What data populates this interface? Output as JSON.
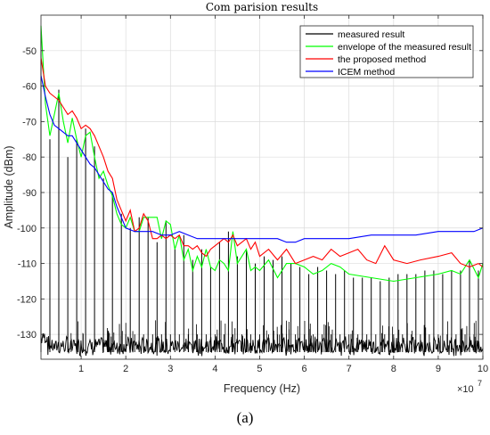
{
  "chart_data": {
    "type": "line",
    "title": "Com parision results",
    "xlabel": "Frequency  (Hz)",
    "ylabel": "Amplitude  (dBm)",
    "x_exponent_label": "×10",
    "x_exponent_power": "7",
    "xlim": [
      0.1,
      10
    ],
    "ylim": [
      -137,
      -40
    ],
    "x_ticks": [
      1,
      2,
      3,
      4,
      5,
      6,
      7,
      8,
      9,
      10
    ],
    "y_ticks": [
      -50,
      -60,
      -70,
      -80,
      -90,
      -100,
      -110,
      -120,
      -130
    ],
    "grid": true,
    "legend_placement": "top-right",
    "series": [
      {
        "name": "measured result",
        "color": "#000000",
        "style": "spikes",
        "noise_floor": [
          -134,
          -132.5
        ],
        "spike_spacing": 0.2,
        "x": [
          0.1,
          0.3,
          0.5,
          0.7,
          0.9,
          1.1,
          1.3,
          1.5,
          1.7,
          1.9,
          2.1,
          2.3,
          2.5,
          2.7,
          2.9,
          3.1,
          3.3,
          3.5,
          3.7,
          3.9,
          4.1,
          4.3,
          4.5,
          4.7,
          4.9,
          5.1,
          5.3,
          5.5,
          5.7,
          5.9,
          6.1,
          6.3,
          6.5,
          6.7,
          6.9,
          7.1,
          7.3,
          7.5,
          7.7,
          7.9,
          8.1,
          8.3,
          8.5,
          8.7,
          8.9,
          9.1,
          9.3,
          9.5,
          9.7,
          9.9
        ],
        "peaks": [
          -43,
          -75,
          -61,
          -80,
          -75,
          -72,
          -77,
          -86,
          -90,
          -96,
          -100,
          -97,
          -97,
          -104,
          -98,
          -106,
          -102,
          -109,
          -106,
          -111,
          -104,
          -101,
          -108,
          -106,
          -110,
          -108,
          -109,
          -108,
          -110,
          -111,
          -113,
          -111,
          -112,
          -113,
          -112,
          -114,
          -114,
          -114,
          -115,
          -114,
          -113,
          -113,
          -113,
          -112,
          -112,
          -113,
          -112,
          -112,
          -109,
          -112
        ]
      },
      {
        "name": "envelope of the measured result",
        "color": "#00ff00",
        "x": [
          0.1,
          0.2,
          0.3,
          0.4,
          0.5,
          0.6,
          0.7,
          0.8,
          0.9,
          1.0,
          1.1,
          1.2,
          1.3,
          1.4,
          1.5,
          1.6,
          1.7,
          1.8,
          1.9,
          2.0,
          2.1,
          2.2,
          2.3,
          2.4,
          2.5,
          2.6,
          2.7,
          2.8,
          2.9,
          3.0,
          3.1,
          3.2,
          3.3,
          3.4,
          3.5,
          3.6,
          3.7,
          3.8,
          3.9,
          4.0,
          4.1,
          4.2,
          4.3,
          4.4,
          4.5,
          4.6,
          4.7,
          4.8,
          4.9,
          5.0,
          5.2,
          5.4,
          5.6,
          5.8,
          6.0,
          6.2,
          6.4,
          6.6,
          6.8,
          7.0,
          7.5,
          8.0,
          8.5,
          9.0,
          9.3,
          9.5,
          9.7,
          9.9,
          10.0
        ],
        "y": [
          -43,
          -65,
          -74,
          -68,
          -62,
          -70,
          -76,
          -69,
          -75,
          -80,
          -74,
          -73,
          -80,
          -86,
          -84,
          -88,
          -91,
          -96,
          -99,
          -100,
          -97,
          -101,
          -101,
          -97,
          -97,
          -97,
          -97,
          -103,
          -98,
          -99,
          -106,
          -102,
          -109,
          -106,
          -112,
          -108,
          -111,
          -106,
          -111,
          -112,
          -109,
          -110,
          -112,
          -101,
          -110,
          -108,
          -106,
          -112,
          -111,
          -112,
          -109,
          -114,
          -110,
          -110,
          -111,
          -113,
          -112,
          -110,
          -111,
          -113,
          -114,
          -115,
          -114,
          -113,
          -112,
          -113,
          -109,
          -114,
          -110
        ]
      },
      {
        "name": "the proposed method",
        "color": "#ff0000",
        "x": [
          0.1,
          0.2,
          0.3,
          0.4,
          0.5,
          0.6,
          0.7,
          0.8,
          0.9,
          1.0,
          1.1,
          1.2,
          1.3,
          1.4,
          1.5,
          1.6,
          1.7,
          1.8,
          1.9,
          2.0,
          2.1,
          2.2,
          2.3,
          2.4,
          2.5,
          2.6,
          2.7,
          2.8,
          2.9,
          3.0,
          3.1,
          3.2,
          3.3,
          3.4,
          3.5,
          3.6,
          3.7,
          3.8,
          3.9,
          4.0,
          4.1,
          4.2,
          4.3,
          4.4,
          4.5,
          4.6,
          4.7,
          4.8,
          4.9,
          5.0,
          5.2,
          5.4,
          5.6,
          5.8,
          6.0,
          6.2,
          6.4,
          6.6,
          6.8,
          7.0,
          7.2,
          7.4,
          7.6,
          7.8,
          8.0,
          8.3,
          8.6,
          9.0,
          9.3,
          9.5,
          9.7,
          9.9,
          10.0
        ],
        "y": [
          -52,
          -60,
          -62,
          -63,
          -64,
          -66,
          -68,
          -67,
          -69,
          -72,
          -71,
          -72,
          -74,
          -77,
          -80,
          -84,
          -86,
          -92,
          -95,
          -98,
          -95,
          -101,
          -100,
          -96,
          -98,
          -103,
          -103,
          -102,
          -103,
          -102,
          -103,
          -102,
          -105,
          -105,
          -106,
          -105,
          -107,
          -108,
          -106,
          -105,
          -104,
          -103,
          -104,
          -102,
          -105,
          -104,
          -103,
          -106,
          -104,
          -108,
          -106,
          -109,
          -106,
          -110,
          -109,
          -108,
          -109,
          -106,
          -108,
          -107,
          -106,
          -109,
          -110,
          -105,
          -109,
          -110,
          -109,
          -108,
          -107,
          -110,
          -111,
          -110,
          -111
        ]
      },
      {
        "name": "ICEM method",
        "color": "#0000ff",
        "x": [
          0.1,
          0.2,
          0.3,
          0.4,
          0.5,
          0.6,
          0.7,
          0.8,
          0.9,
          1.0,
          1.1,
          1.2,
          1.3,
          1.4,
          1.5,
          1.6,
          1.7,
          1.8,
          1.9,
          2.0,
          2.2,
          2.4,
          2.6,
          2.8,
          3.0,
          3.2,
          3.4,
          3.6,
          3.8,
          4.0,
          4.2,
          4.4,
          4.6,
          4.8,
          5.0,
          5.2,
          5.4,
          5.6,
          5.8,
          6.0,
          6.5,
          7.0,
          7.5,
          8.0,
          8.5,
          9.0,
          9.5,
          9.8,
          10.0
        ],
        "y": [
          -57,
          -63,
          -68,
          -71,
          -72,
          -73,
          -74,
          -74,
          -76,
          -78,
          -80,
          -82,
          -83,
          -85,
          -87,
          -89,
          -90,
          -94,
          -97,
          -100,
          -101,
          -101,
          -101,
          -102,
          -102,
          -101,
          -102,
          -103,
          -103,
          -103,
          -103,
          -103,
          -103,
          -103,
          -103,
          -103,
          -103,
          -104,
          -104,
          -103,
          -103,
          -103,
          -102,
          -102,
          -102,
          -101,
          -101,
          -101,
          -100
        ]
      }
    ]
  },
  "caption": "(a)"
}
